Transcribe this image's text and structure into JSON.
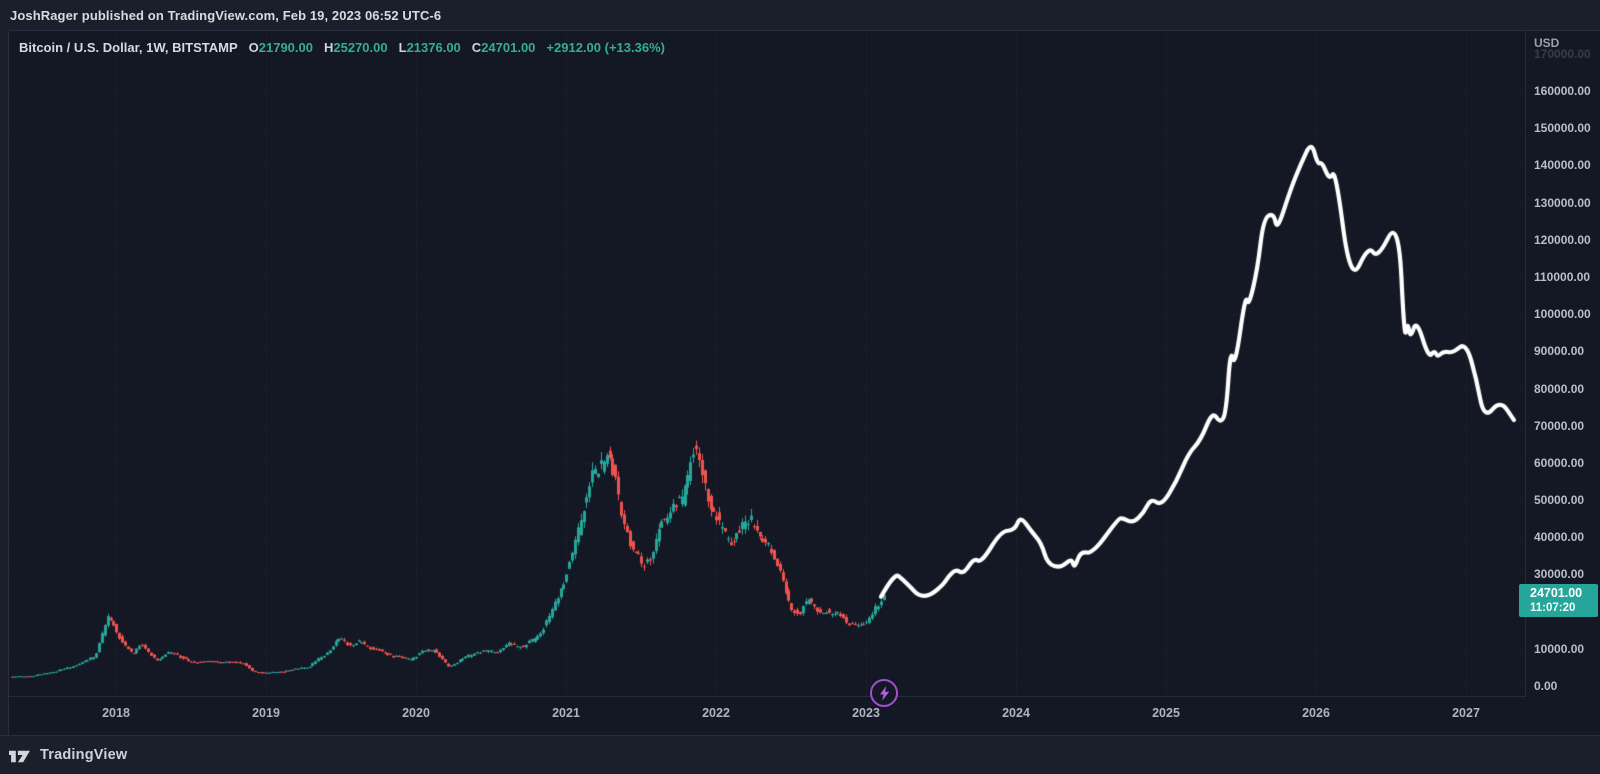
{
  "header": {
    "attribution": "JoshRager published on TradingView.com, Feb 19, 2023 06:52 UTC-6"
  },
  "legend": {
    "symbol": "Bitcoin / U.S. Dollar, 1W, BITSTAMP",
    "ohlc": [
      {
        "label": "O",
        "value": "21790.00"
      },
      {
        "label": "H",
        "value": "25270.00"
      },
      {
        "label": "L",
        "value": "21376.00"
      },
      {
        "label": "C",
        "value": "24701.00"
      }
    ],
    "change": "+2912.00 (+13.36%)"
  },
  "price_scale": {
    "currency": "USD",
    "ticks": [
      {
        "text": "170000.00",
        "value": 170000,
        "faint": true
      },
      {
        "text": "160000.00",
        "value": 160000
      },
      {
        "text": "150000.00",
        "value": 150000
      },
      {
        "text": "140000.00",
        "value": 140000
      },
      {
        "text": "130000.00",
        "value": 130000
      },
      {
        "text": "120000.00",
        "value": 120000
      },
      {
        "text": "110000.00",
        "value": 110000
      },
      {
        "text": "100000.00",
        "value": 100000
      },
      {
        "text": "90000.00",
        "value": 90000
      },
      {
        "text": "80000.00",
        "value": 80000
      },
      {
        "text": "70000.00",
        "value": 70000
      },
      {
        "text": "60000.00",
        "value": 60000
      },
      {
        "text": "50000.00",
        "value": 50000
      },
      {
        "text": "40000.00",
        "value": 40000
      },
      {
        "text": "30000.00",
        "value": 30000
      },
      {
        "text": "10000.00",
        "value": 10000
      },
      {
        "text": "0.00",
        "value": 0
      }
    ]
  },
  "price_label": {
    "value": "24701.00",
    "countdown": "11:07:20"
  },
  "time_scale": {
    "years": [
      {
        "text": "2018",
        "value": 2018
      },
      {
        "text": "2019",
        "value": 2019
      },
      {
        "text": "2020",
        "value": 2020
      },
      {
        "text": "2021",
        "value": 2021
      },
      {
        "text": "2022",
        "value": 2022
      },
      {
        "text": "2023",
        "value": 2023
      },
      {
        "text": "2024",
        "value": 2024
      },
      {
        "text": "2025",
        "value": 2025
      },
      {
        "text": "2026",
        "value": 2026
      },
      {
        "text": "2027",
        "value": 2027
      }
    ]
  },
  "marker": {
    "icon": "lightning",
    "year": 2023.12
  },
  "footer": {
    "brand": "TradingView"
  },
  "colors": {
    "up": "#26a69a",
    "down": "#ef5350",
    "accent_teal": "#35ab99",
    "label_box": "#26a69a",
    "projection": "#ffffff",
    "marker_purple": "#a44fd0",
    "grid": "rgba(150,160,185,0.12)"
  },
  "chart_data": {
    "type": "candlestick",
    "title": "Bitcoin / U.S. Dollar, 1W, BITSTAMP — weekly history with hand-drawn white projection line through 2027",
    "xlabel": "",
    "ylabel": "USD",
    "x_range_years": [
      2017.23,
      2027.4
    ],
    "y_range_usd": [
      0,
      176000
    ],
    "grid": "horizontal dotted every 10000",
    "legend_position": "none",
    "history_weekly_keyframes": [
      [
        2017.3,
        2450
      ],
      [
        2017.45,
        2650
      ],
      [
        2017.6,
        3900
      ],
      [
        2017.75,
        5600
      ],
      [
        2017.87,
        8200
      ],
      [
        2017.96,
        19200
      ],
      [
        2018.05,
        11500
      ],
      [
        2018.12,
        8700
      ],
      [
        2018.17,
        11200
      ],
      [
        2018.28,
        7000
      ],
      [
        2018.38,
        9200
      ],
      [
        2018.5,
        6400
      ],
      [
        2018.62,
        6600
      ],
      [
        2018.75,
        6400
      ],
      [
        2018.85,
        6300
      ],
      [
        2018.92,
        3900
      ],
      [
        2019.0,
        3500
      ],
      [
        2019.12,
        3900
      ],
      [
        2019.3,
        5300
      ],
      [
        2019.4,
        8500
      ],
      [
        2019.5,
        12800
      ],
      [
        2019.58,
        10800
      ],
      [
        2019.63,
        11900
      ],
      [
        2019.75,
        9500
      ],
      [
        2019.88,
        7800
      ],
      [
        2019.98,
        7200
      ],
      [
        2020.05,
        9200
      ],
      [
        2020.13,
        9900
      ],
      [
        2020.22,
        5200
      ],
      [
        2020.32,
        7300
      ],
      [
        2020.42,
        9300
      ],
      [
        2020.55,
        9200
      ],
      [
        2020.63,
        11300
      ],
      [
        2020.72,
        10400
      ],
      [
        2020.82,
        13500
      ],
      [
        2020.9,
        18500
      ],
      [
        2020.98,
        27000
      ],
      [
        2021.05,
        34500
      ],
      [
        2021.12,
        48000
      ],
      [
        2021.2,
        57000
      ],
      [
        2021.28,
        62000
      ],
      [
        2021.33,
        56000
      ],
      [
        2021.38,
        47000
      ],
      [
        2021.45,
        36500
      ],
      [
        2021.52,
        33000
      ],
      [
        2021.58,
        34500
      ],
      [
        2021.63,
        43000
      ],
      [
        2021.7,
        47500
      ],
      [
        2021.78,
        49000
      ],
      [
        2021.85,
        65000
      ],
      [
        2021.9,
        59000
      ],
      [
        2021.97,
        49000
      ],
      [
        2022.03,
        42500
      ],
      [
        2022.1,
        38500
      ],
      [
        2022.17,
        42000
      ],
      [
        2022.24,
        45500
      ],
      [
        2022.3,
        40000
      ],
      [
        2022.38,
        36500
      ],
      [
        2022.44,
        30000
      ],
      [
        2022.5,
        21000
      ],
      [
        2022.56,
        19500
      ],
      [
        2022.63,
        23000
      ],
      [
        2022.7,
        19800
      ],
      [
        2022.77,
        19300
      ],
      [
        2022.83,
        20200
      ],
      [
        2022.88,
        16300
      ],
      [
        2022.95,
        16800
      ],
      [
        2023.02,
        16900
      ],
      [
        2023.08,
        21500
      ],
      [
        2023.135,
        24700
      ]
    ],
    "projection_line": [
      [
        2023.1,
        24000
      ],
      [
        2023.19,
        30400
      ],
      [
        2023.24,
        28800
      ],
      [
        2023.3,
        26500
      ],
      [
        2023.35,
        24200
      ],
      [
        2023.43,
        24300
      ],
      [
        2023.52,
        27500
      ],
      [
        2023.55,
        29500
      ],
      [
        2023.6,
        31400
      ],
      [
        2023.65,
        30100
      ],
      [
        2023.72,
        34400
      ],
      [
        2023.77,
        33100
      ],
      [
        2023.9,
        41700
      ],
      [
        2023.99,
        41800
      ],
      [
        2024.03,
        45700
      ],
      [
        2024.1,
        41700
      ],
      [
        2024.17,
        38400
      ],
      [
        2024.21,
        32800
      ],
      [
        2024.3,
        31700
      ],
      [
        2024.37,
        34400
      ],
      [
        2024.39,
        31500
      ],
      [
        2024.43,
        36300
      ],
      [
        2024.51,
        35500
      ],
      [
        2024.68,
        44900
      ],
      [
        2024.71,
        45200
      ],
      [
        2024.78,
        43800
      ],
      [
        2024.85,
        46500
      ],
      [
        2024.9,
        50500
      ],
      [
        2024.97,
        48400
      ],
      [
        2025.07,
        55000
      ],
      [
        2025.15,
        62600
      ],
      [
        2025.23,
        66000
      ],
      [
        2025.31,
        73900
      ],
      [
        2025.36,
        70700
      ],
      [
        2025.4,
        73100
      ],
      [
        2025.43,
        90900
      ],
      [
        2025.46,
        85500
      ],
      [
        2025.53,
        105400
      ],
      [
        2025.55,
        101900
      ],
      [
        2025.61,
        112000
      ],
      [
        2025.65,
        125800
      ],
      [
        2025.72,
        127200
      ],
      [
        2025.74,
        122300
      ],
      [
        2025.83,
        133500
      ],
      [
        2025.9,
        140500
      ],
      [
        2025.97,
        146500
      ],
      [
        2026.01,
        140300
      ],
      [
        2026.04,
        140900
      ],
      [
        2026.09,
        136000
      ],
      [
        2026.13,
        139000
      ],
      [
        2026.23,
        108000
      ],
      [
        2026.35,
        118500
      ],
      [
        2026.41,
        114800
      ],
      [
        2026.55,
        126100
      ],
      [
        2026.59,
        92700
      ],
      [
        2026.61,
        98100
      ],
      [
        2026.63,
        93300
      ],
      [
        2026.67,
        98700
      ],
      [
        2026.75,
        88200
      ],
      [
        2026.79,
        90300
      ],
      [
        2026.81,
        88400
      ],
      [
        2026.85,
        90100
      ],
      [
        2026.91,
        89500
      ],
      [
        2027.0,
        92500
      ],
      [
        2027.07,
        82500
      ],
      [
        2027.12,
        71800
      ],
      [
        2027.23,
        76900
      ],
      [
        2027.32,
        71500
      ]
    ],
    "colors": {
      "up": "#26a69a",
      "down": "#ef5350",
      "projection": "#ffffff"
    }
  }
}
